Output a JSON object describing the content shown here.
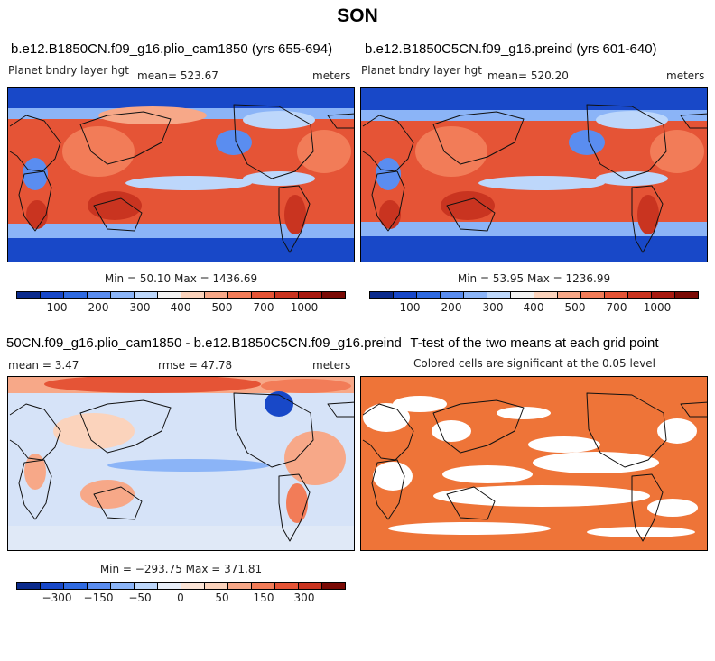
{
  "title": "SON",
  "panels": {
    "top_left": {
      "title": "b.e12.B1850CN.f09_g16.plio_cam1850 (yrs 655-694)",
      "variable": "Planet bndry layer hgt",
      "mean_label": "mean= 523.67",
      "units": "meters",
      "minmax": "Min =  50.10 Max = 1436.69",
      "colorbar_ticks": [
        "100",
        "200",
        "300",
        "400",
        "500",
        "700",
        "1000"
      ]
    },
    "top_right": {
      "title": "b.e12.B1850C5CN.f09_g16.preind (yrs 601-640)",
      "variable": "Planet bndry layer hgt",
      "mean_label": "mean= 520.20",
      "units": "meters",
      "minmax": "Min =  53.95 Max = 1236.99",
      "colorbar_ticks": [
        "100",
        "200",
        "300",
        "400",
        "500",
        "700",
        "1000"
      ]
    },
    "bottom_left": {
      "title": "50CN.f09_g16.plio_cam1850 - b.e12.B1850C5CN.f09_g16.preind",
      "mean_label": "mean =   3.47",
      "rmse_label": "rmse =  47.78",
      "units": "meters",
      "minmax": "Min = −293.75 Max = 371.81",
      "colorbar_ticks": [
        "−300",
        "−150",
        "−50",
        "0",
        "50",
        "150",
        "300"
      ]
    },
    "bottom_right": {
      "title": "T-test of the two means at each grid point",
      "subtitle": "Colored cells are significant at the 0.05 level"
    }
  },
  "colors": {
    "seq_palette": [
      "#0a2a8c",
      "#1848c8",
      "#2f6ae0",
      "#5a8df0",
      "#8bb4f7",
      "#bdd7fb",
      "#f1f1f1",
      "#fbd3bc",
      "#f7a888",
      "#f27c58",
      "#e55436",
      "#c93420",
      "#a81a10",
      "#7a0a05"
    ],
    "div_palette": [
      "#0a2a8c",
      "#1848c8",
      "#2f6ae0",
      "#5a8df0",
      "#8bb4f7",
      "#bdd7fb",
      "#e8eef9",
      "#fbe4d6",
      "#fbd3bc",
      "#f7a888",
      "#f27c58",
      "#e55436",
      "#c93420",
      "#7a0a05"
    ],
    "ttest_fill": "#ee7438"
  }
}
